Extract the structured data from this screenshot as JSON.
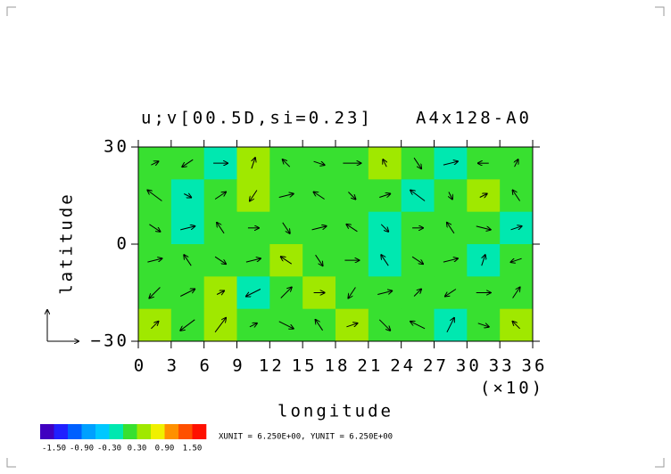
{
  "chart_data": {
    "type": "vector",
    "title": "u;v[00.5D,si=0.23]",
    "subtitle": "A4x128-A0",
    "xlabel": "longitude",
    "xlabel_unit": "(×10)",
    "ylabel": "latitude",
    "xlim": [
      0,
      36
    ],
    "ylim": [
      -30,
      30
    ],
    "xticks": [
      0,
      3,
      6,
      9,
      12,
      15,
      18,
      21,
      24,
      27,
      30,
      33,
      36
    ],
    "yticks": [
      {
        "value": -30,
        "label": "−30"
      },
      0,
      30
    ],
    "levels": [
      -1.8,
      -1.5,
      -1.2,
      -0.9,
      -0.6,
      -0.3,
      0,
      0.3,
      0.6,
      0.9,
      1.2,
      1.5,
      1.8
    ],
    "colors": [
      "#4000c0",
      "#2020ff",
      "#0060ff",
      "#00a0ff",
      "#00c8ff",
      "#00e8b0",
      "#38e030",
      "#a0e800",
      "#f0f000",
      "#ff9000",
      "#ff5000",
      "#ff1000"
    ],
    "colorbar_ticks": [
      {
        "value": -1.5,
        "label": "-1.50"
      },
      {
        "value": -0.9,
        "label": "-0.90"
      },
      {
        "value": -0.3,
        "label": "-0.30"
      },
      {
        "value": 0.3,
        "label": "0.30"
      },
      {
        "value": 0.9,
        "label": "0.90"
      },
      {
        "value": 1.5,
        "label": "1.50"
      }
    ],
    "unit_note": "XUNIT = 6.250E+00, YUNIT = 6.250E+00",
    "field": [
      [
        0.2,
        0.1,
        -0.1,
        0.3,
        0.2,
        0.1,
        0.2,
        0.3,
        0.0,
        -0.2,
        0.2,
        0.1
      ],
      [
        0.1,
        -0.2,
        0.2,
        0.3,
        0.1,
        0.2,
        0.05,
        0.2,
        -0.1,
        0.1,
        0.3,
        0.05
      ],
      [
        0.2,
        -0.1,
        0.1,
        0.2,
        0.2,
        0.1,
        0.1,
        -0.2,
        0.05,
        0.2,
        0.1,
        -0.1
      ],
      [
        0.1,
        0.05,
        0.2,
        0.1,
        0.3,
        0.2,
        0.05,
        -0.1,
        0.2,
        0.1,
        -0.2,
        0.1
      ],
      [
        0.2,
        0.1,
        0.3,
        -0.1,
        0.2,
        0.3,
        0.2,
        0.1,
        0.05,
        0.2,
        0.1,
        0.2
      ],
      [
        0.3,
        0.1,
        0.4,
        0.2,
        0.1,
        0.2,
        0.3,
        0.1,
        0.2,
        -0.3,
        0.2,
        0.3
      ]
    ],
    "u": [
      [
        2,
        -3,
        4,
        1,
        -2,
        3,
        5,
        -1,
        2,
        4,
        -3,
        1
      ],
      [
        -4,
        2,
        3,
        -2,
        4,
        -3,
        2,
        3,
        -4,
        1,
        2,
        -2
      ],
      [
        3,
        4,
        -2,
        3,
        2,
        4,
        -3,
        2,
        3,
        -2,
        4,
        3
      ],
      [
        4,
        -2,
        3,
        4,
        -3,
        2,
        4,
        -2,
        3,
        4,
        1,
        -3
      ],
      [
        -3,
        4,
        2,
        -4,
        3,
        3,
        -2,
        4,
        2,
        -3,
        4,
        2
      ],
      [
        2,
        -4,
        3,
        2,
        4,
        -2,
        3,
        3,
        -4,
        2,
        3,
        -2
      ]
    ],
    "v": [
      [
        1,
        -2,
        0,
        3,
        2,
        -1,
        0,
        2,
        -3,
        1,
        0,
        2
      ],
      [
        3,
        -1,
        2,
        -3,
        1,
        2,
        -2,
        1,
        3,
        -2,
        1,
        3
      ],
      [
        -2,
        1,
        3,
        0,
        -3,
        1,
        2,
        -2,
        0,
        3,
        -1,
        1
      ],
      [
        1,
        3,
        -2,
        1,
        2,
        -3,
        0,
        3,
        -2,
        1,
        3,
        -1
      ],
      [
        -3,
        2,
        1,
        -2,
        3,
        0,
        -3,
        1,
        2,
        -2,
        0,
        3
      ],
      [
        2,
        -3,
        4,
        1,
        -2,
        3,
        1,
        -3,
        2,
        4,
        -1,
        2
      ]
    ]
  }
}
